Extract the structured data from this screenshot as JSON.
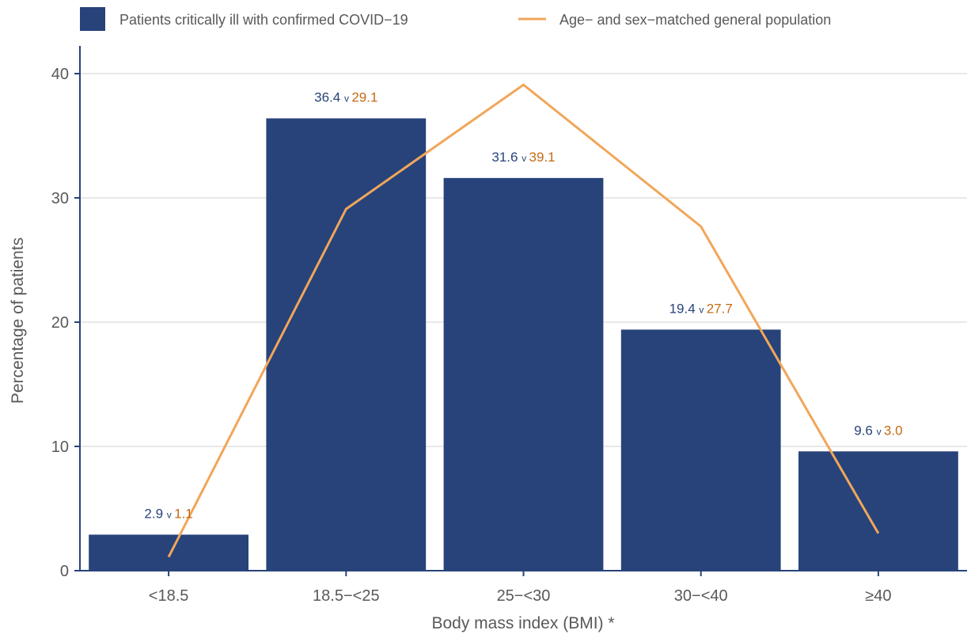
{
  "chart_data": {
    "type": "bar",
    "categories": [
      "<18.5",
      "18.5−<25",
      "25−<30",
      "30−<40",
      "≥40"
    ],
    "series": [
      {
        "name": "Patients critically ill with confirmed COVID−19",
        "kind": "bar",
        "color": "#27437a",
        "values": [
          2.9,
          36.4,
          31.6,
          19.4,
          9.6
        ]
      },
      {
        "name": "Age− and sex−matched general population",
        "kind": "line",
        "color": "#f1a65a",
        "values": [
          1.1,
          29.1,
          39.1,
          27.7,
          3.0
        ]
      }
    ],
    "data_labels": [
      {
        "bar": "2.9",
        "sep": "v",
        "line": "1.1"
      },
      {
        "bar": "36.4",
        "sep": "v",
        "line": "29.1"
      },
      {
        "bar": "31.6",
        "sep": "v",
        "line": "39.1"
      },
      {
        "bar": "19.4",
        "sep": "v",
        "line": "27.7"
      },
      {
        "bar": "9.6",
        "sep": "v",
        "line": "3.0"
      }
    ],
    "label_colors": {
      "bar": "#27437a",
      "line": "#c46a14",
      "sep": "#27437a"
    },
    "xlabel": "Body mass index (BMI) *",
    "ylabel": "Percentage of patients",
    "ylim": [
      0,
      42
    ],
    "yticks": [
      0,
      10,
      20,
      30,
      40
    ],
    "grid": true,
    "legend_position": "top"
  }
}
